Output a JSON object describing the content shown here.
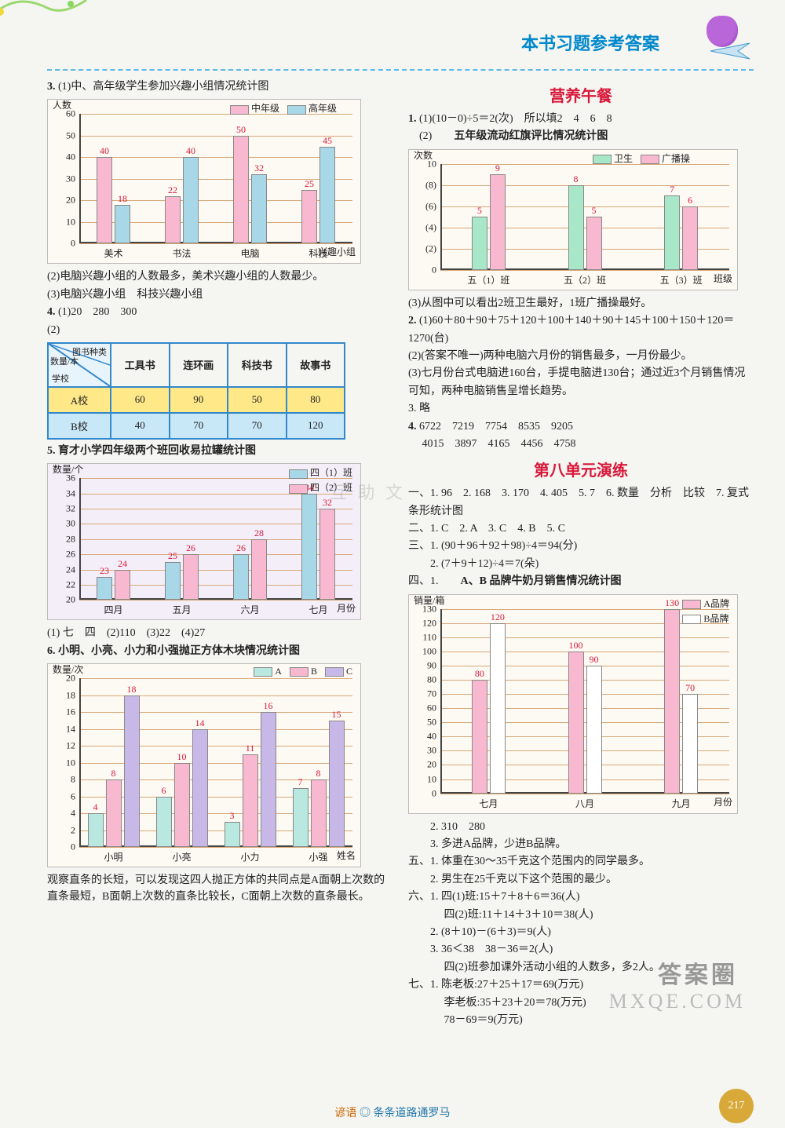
{
  "header": {
    "title": "本书习题参考答案"
  },
  "watermarks": {
    "w1": "互 助 文",
    "w2": "MXQE.COM",
    "w3": "答案圈"
  },
  "left": {
    "q3": {
      "prefix": "3. ",
      "title": "(1)中、高年级学生参加兴趣小组情况统计图",
      "chart": {
        "type": "bar",
        "y_title": "人数",
        "x_title": "兴趣小组",
        "legend": [
          "中年级",
          "高年级"
        ],
        "colors": {
          "mid": "#f8b8d0",
          "high": "#a8d8e8"
        },
        "ylim": [
          0,
          60
        ],
        "ystep": 10,
        "categories": [
          "美术",
          "书法",
          "电脑",
          "科技"
        ],
        "series_mid": [
          40,
          22,
          50,
          25
        ],
        "series_high": [
          18,
          40,
          32,
          45
        ],
        "grid_color": "#d8a878",
        "bg": "#fdf9f3"
      },
      "a2": "(2)电脑兴趣小组的人数最多，美术兴趣小组的人数最少。",
      "a3": "(3)电脑兴趣小组　科技兴趣小组"
    },
    "q4": {
      "prefix": "4. ",
      "a1": "(1)20　280　300",
      "a2_label": "(2)",
      "table": {
        "diag_labels": {
          "top": "图书种类",
          "mid": "数量/本",
          "bottom": "学校"
        },
        "cols": [
          "工具书",
          "连环画",
          "科技书",
          "故事书"
        ],
        "rows": [
          {
            "label": "A校",
            "vals": [
              60,
              90,
              50,
              80
            ],
            "cls": "row-a"
          },
          {
            "label": "B校",
            "vals": [
              40,
              70,
              70,
              120
            ],
            "cls": "row-b"
          }
        ],
        "border_color": "#3388cc"
      }
    },
    "q5": {
      "prefix": "5. ",
      "title": "育才小学四年级两个班回收易拉罐统计图",
      "chart": {
        "type": "bar",
        "y_title": "数量/个",
        "x_title": "月份",
        "legend": [
          "四（1）班",
          "四（2）班"
        ],
        "colors": {
          "c1": "#a8d8e8",
          "c2": "#f8b8d0"
        },
        "ylim": [
          20,
          36
        ],
        "ystep": 2,
        "categories": [
          "四月",
          "五月",
          "六月",
          "七月"
        ],
        "series_c1": [
          23,
          25,
          26,
          34
        ],
        "series_c2": [
          24,
          26,
          28,
          32
        ],
        "grid_bg": "#e8d8f0"
      },
      "answers": "(1) 七　四　(2)110　(3)22　(4)27"
    },
    "q6": {
      "prefix": "6. ",
      "title": "小明、小亮、小力和小强抛正方体木块情况统计图",
      "chart": {
        "type": "bar",
        "y_title": "数量/次",
        "x_title": "姓名",
        "legend": [
          "A",
          "B",
          "C"
        ],
        "colors": {
          "A": "#b8e8e0",
          "B": "#f8b8d0",
          "C": "#c8b8e8"
        },
        "ylim": [
          0,
          20
        ],
        "ystep": 2,
        "categories": [
          "小明",
          "小亮",
          "小力",
          "小强"
        ],
        "series_A": [
          4,
          6,
          3,
          7
        ],
        "series_B": [
          8,
          10,
          11,
          8
        ],
        "series_C": [
          18,
          14,
          16,
          15
        ]
      },
      "note": "观察直条的长短，可以发现这四人抛正方体的共同点是A面朝上次数的直条最短，B面朝上次数的直条比较长，C面朝上次数的直条最长。"
    }
  },
  "right": {
    "lunch_title": "营养午餐",
    "q1": {
      "prefix": "1. ",
      "a1": "(1)(10－0)÷5＝2(次)　所以填2　4　6　8",
      "a2_label": "(2)",
      "chart_title": "五年级流动红旗评比情况统计图",
      "chart": {
        "y_title": "次数",
        "x_title": "班级",
        "legend": [
          "卫生",
          "广播操"
        ],
        "colors": {
          "wei": "#a8e8c8",
          "guang": "#f8b8d0"
        },
        "ylim": [
          0,
          10
        ],
        "ystep": 2,
        "y_paren": true,
        "categories": [
          "五（1）班",
          "五（2）班",
          "五（3）班"
        ],
        "series_wei": [
          5,
          8,
          7
        ],
        "series_guang": [
          9,
          5,
          6
        ]
      },
      "a3": "(3)从图中可以看出2班卫生最好，1班广播操最好。"
    },
    "q2": {
      "prefix": "2. ",
      "lines": [
        "(1)60＋80＋90＋75＋120＋100＋140＋90＋145＋100＋150＋120＝1270(台)",
        "(2)(答案不唯一)两种电脑六月份的销售最多，一月份最少。",
        "(3)七月份台式电脑进160台，手提电脑进130台；通过近3个月销售情况可知，两种电脑销售呈增长趋势。"
      ]
    },
    "q3r": "3. 略",
    "q4r": {
      "prefix": "4. ",
      "row1": "6722　7219　7754　8535　9205",
      "row2": "4015　3897　4165　4456　4758"
    },
    "unit8_title": "第八单元演练",
    "u8p1": "一、1. 96　2. 168　3. 170　4. 405　5. 7　6. 数量　分析　比较　7. 复式条形统计图",
    "u8p2": "二、1. C　2. A　3. C　4. B　5. C",
    "u8p3a": "三、1. (90＋96＋92＋98)÷4＝94(分)",
    "u8p3b": "　　2. (7＋9＋12)÷4＝7(朵)",
    "u8p4_label": "四、1.",
    "u8p4_title": "A、B 品牌牛奶月销售情况统计图",
    "chart4": {
      "y_title": "销量/箱",
      "x_title": "月份",
      "legend": [
        "A品牌",
        "B品牌"
      ],
      "colors": {
        "A": "#f8b8d0",
        "B": "#ffffff",
        "B_border": "#888"
      },
      "ylim": [
        0,
        130
      ],
      "ystep": 10,
      "categories": [
        "七月",
        "八月",
        "九月"
      ],
      "series_A": [
        80,
        100,
        130
      ],
      "series_B": [
        120,
        90,
        70
      ]
    },
    "u8_rest": [
      "　　2. 310　280",
      "　　3. 多进A品牌，少进B品牌。",
      "五、1. 体重在30～35千克这个范围内的同学最多。",
      "　　2. 男生在25千克以下这个范围的最少。",
      "六、1. 四(1)班:15＋7＋8＋6＝36(人)",
      "　　　 四(2)班:11＋14＋3＋10＝38(人)",
      "　　2. (8＋10)－(6＋3)＝9(人)",
      "　　3. 36＜38　38－36＝2(人)",
      "　　　 四(2)班参加课外活动小组的人数多，多2人。",
      "七、1. 陈老板:27＋25＋17＝69(万元)",
      "　　　 李老板:35＋23＋20＝78(万元)",
      "　　　 78－69＝9(万元)"
    ]
  },
  "footer": {
    "proverb_label": "谚语",
    "proverb": "条条道路通罗马",
    "page": "217"
  }
}
